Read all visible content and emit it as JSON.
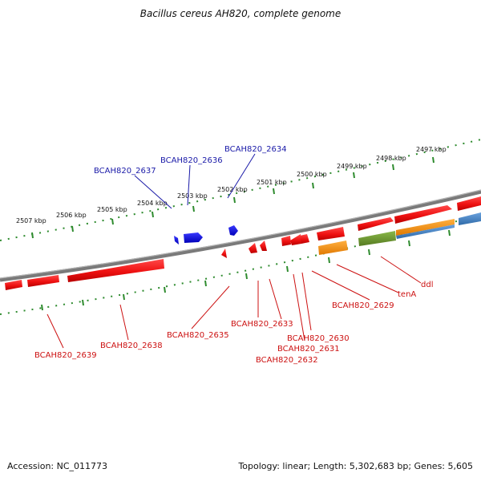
{
  "title": "Bacillus cereus AH820, complete genome",
  "footer": {
    "accession": "Accession: NC_011773",
    "topology": "Topology: linear; Length: 5,302,683 bp; Genes: 5,605"
  },
  "scale_labels": [
    "2507 kbp",
    "2506 kbp",
    "2505 kbp",
    "2504 kbp",
    "2503 kbp",
    "2502 kbp",
    "2501 kbp",
    "2500 kbp",
    "2499 kbp",
    "2498 kbp",
    "2497 kbp"
  ],
  "gene_labels_top": [
    "BCAH820_2637",
    "BCAH820_2636",
    "BCAH820_2634"
  ],
  "gene_labels_bottom": [
    "BCAH820_2639",
    "BCAH820_2638",
    "BCAH820_2635",
    "BCAH820_2633",
    "BCAH820_2632",
    "BCAH820_2631",
    "BCAH820_2630",
    "BCAH820_2629",
    "tenA",
    "ddl"
  ],
  "colors": {
    "backbone": "#7a7a7a",
    "tick": "#2e8b2e",
    "gene_red": "#ee1111",
    "gene_blue": "#1111dd",
    "gene_orange": "#ff9911",
    "gene_green": "#6a9a2a",
    "gene_steel": "#4a86c8",
    "label_blue": "#1a1aa8",
    "label_red": "#cc1111"
  }
}
